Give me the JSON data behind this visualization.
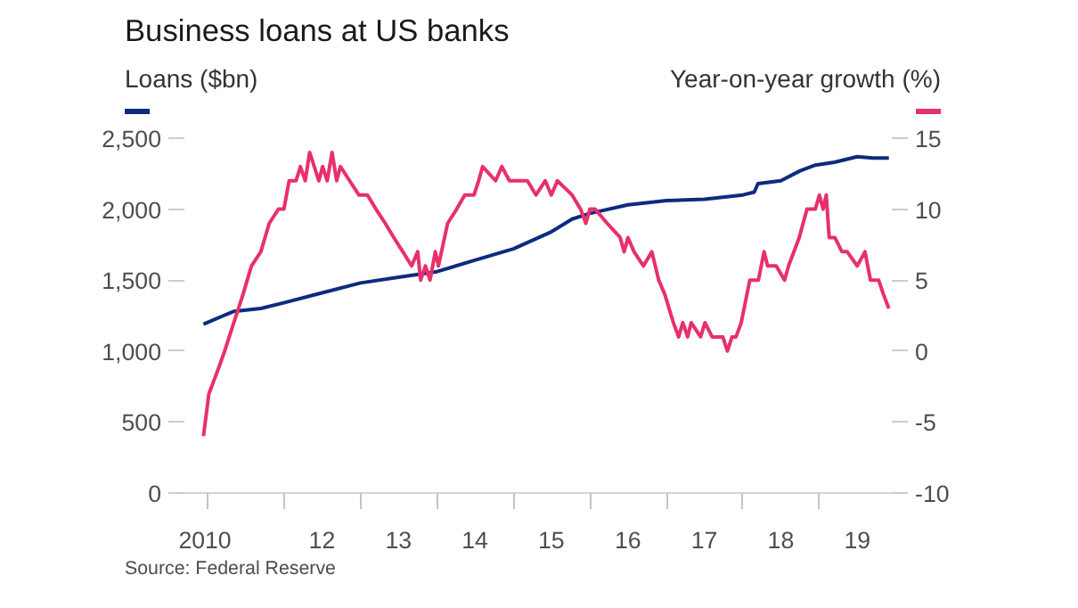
{
  "chart_data": {
    "type": "line",
    "title": "Business loans at US banks",
    "ylabel": "Loans ($bn)",
    "y2label": "Year-on-year growth (%)",
    "annotations": [
      "Source: Federal Reserve"
    ],
    "xlim": [
      "2010-09-13",
      "2019-12-13"
    ],
    "xticks": [
      {
        "value": "2010-12-20",
        "label": "2010"
      },
      {
        "value": "2011-01-01",
        "label": null
      },
      {
        "value": "2012-01-01",
        "label": null
      },
      {
        "value": "2012-07-01",
        "label": "12"
      },
      {
        "value": "2013-01-01",
        "label": null
      },
      {
        "value": "2013-07-01",
        "label": "13"
      },
      {
        "value": "2014-01-01",
        "label": null
      },
      {
        "value": "2014-07-01",
        "label": "14"
      },
      {
        "value": "2015-01-01",
        "label": null
      },
      {
        "value": "2015-07-01",
        "label": "15"
      },
      {
        "value": "2016-01-01",
        "label": null
      },
      {
        "value": "2016-07-01",
        "label": "16"
      },
      {
        "value": "2017-01-01",
        "label": null
      },
      {
        "value": "2017-07-01",
        "label": "17"
      },
      {
        "value": "2018-01-01",
        "label": null
      },
      {
        "value": "2018-07-01",
        "label": "18"
      },
      {
        "value": "2019-01-01",
        "label": null
      },
      {
        "value": "2019-07-01",
        "label": "19"
      }
    ],
    "ylim": [
      0,
      2500
    ],
    "yticks": [
      0,
      {
        "value": 500,
        "label": "500"
      },
      {
        "value": 1000,
        "label": "1,000"
      },
      {
        "value": 1500,
        "label": "1,500"
      },
      {
        "value": 2000,
        "label": "2,000"
      },
      {
        "value": 2500,
        "label": "2,500"
      }
    ],
    "y2lim": [
      -10,
      15
    ],
    "y2ticks": [
      -10,
      -5,
      0,
      5,
      10,
      15
    ],
    "grid": false,
    "line_style": "solid",
    "series": [
      {
        "color": "#0d2b7e",
        "x": [
          "2010-12-13",
          "2011-05-07",
          "2011-09-13",
          "2012-01-01",
          "2012-07-01",
          "2013-01-01",
          "2013-07-01",
          "2014-01-01",
          "2014-07-01",
          "2015-01-01",
          "2015-07-01",
          "2015-10-08",
          "2016-01-01",
          "2016-07-01",
          "2017-01-01",
          "2017-07-01",
          "2018-01-01",
          "2018-02-24",
          "2018-03-14",
          "2018-07-01",
          "2018-10-01",
          "2018-12-13",
          "2019-03-14",
          "2019-07-01",
          "2019-09-13",
          "2019-11-29"
        ],
        "values": [
          1190,
          1280,
          1300,
          1340,
          1410,
          1480,
          1520,
          1560,
          1640,
          1720,
          1840,
          1930,
          1970,
          2030,
          2060,
          2070,
          2100,
          2120,
          2180,
          2200,
          2270,
          2310,
          2330,
          2370,
          2360,
          2360
        ]
      },
      {
        "color": "#e8306b",
        "axis": "y2",
        "x": [
          "2010-12-13",
          "2011-01-08",
          "2011-02-03",
          "2011-02-28",
          "2011-03-24",
          "2011-05-07",
          "2011-06-20",
          "2011-07-30",
          "2011-09-13",
          "2011-10-23",
          "2011-12-06",
          "2012-01-01",
          "2012-01-26",
          "2012-02-28",
          "2012-03-20",
          "2012-04-12",
          "2012-05-03",
          "2012-05-25",
          "2012-06-16",
          "2012-07-04",
          "2012-07-26",
          "2012-08-18",
          "2012-09-09",
          "2012-09-27",
          "2012-11-10",
          "2012-12-24",
          "2013-02-03",
          "2013-03-16",
          "2013-04-29",
          "2013-06-09",
          "2013-07-22",
          "2013-09-02",
          "2013-10-01",
          "2013-10-15",
          "2013-11-07",
          "2013-11-29",
          "2013-12-24",
          "2014-01-08",
          "2014-02-21",
          "2014-04-05",
          "2014-05-14",
          "2014-06-27",
          "2014-07-19",
          "2014-08-07",
          "2014-10-08",
          "2014-11-07",
          "2014-12-13",
          "2015-03-09",
          "2015-04-19",
          "2015-06-02",
          "2015-07-01",
          "2015-07-30",
          "2015-10-08",
          "2015-11-18",
          "2015-12-13",
          "2016-01-01",
          "2016-01-26",
          "2016-03-24",
          "2016-05-25",
          "2016-06-13",
          "2016-07-01",
          "2016-07-30",
          "2016-09-13",
          "2016-10-23",
          "2016-11-25",
          "2016-12-24",
          "2017-02-03",
          "2017-02-28",
          "2017-03-20",
          "2017-04-12",
          "2017-04-29",
          "2017-06-13",
          "2017-07-04",
          "2017-08-07",
          "2017-09-27",
          "2017-10-19",
          "2017-11-10",
          "2017-11-29",
          "2017-12-24",
          "2018-02-03",
          "2018-03-16",
          "2018-04-12",
          "2018-04-29",
          "2018-06-09",
          "2018-07-19",
          "2018-08-07",
          "2018-09-27",
          "2018-11-03",
          "2018-12-13",
          "2019-01-01",
          "2019-01-19",
          "2019-02-03",
          "2019-02-17",
          "2019-03-16",
          "2019-04-19",
          "2019-05-14",
          "2019-07-01",
          "2019-08-07",
          "2019-09-02",
          "2019-10-11",
          "2019-11-03",
          "2019-11-29"
        ],
        "values": [
          -6,
          -3,
          -2,
          -1,
          0,
          2,
          4,
          6,
          7,
          9,
          10,
          10,
          12,
          12,
          13,
          12,
          14,
          13,
          12,
          13,
          12,
          14,
          12,
          13,
          12,
          11,
          11,
          10,
          9,
          8,
          7,
          6,
          7,
          5,
          6,
          5,
          7,
          6,
          9,
          10,
          11,
          11,
          12,
          13,
          12,
          13,
          12,
          12,
          11,
          12,
          11,
          12,
          11,
          10,
          9,
          10,
          10,
          9,
          8,
          7,
          8,
          7,
          6,
          7,
          5,
          4,
          2,
          1,
          2,
          1,
          2,
          1,
          2,
          1,
          1,
          0,
          1,
          1,
          2,
          5,
          5,
          7,
          6,
          6,
          5,
          6,
          8,
          10,
          10,
          11,
          10,
          11,
          8,
          8,
          7,
          7,
          6,
          7,
          5,
          5,
          4,
          3
        ]
      }
    ]
  }
}
